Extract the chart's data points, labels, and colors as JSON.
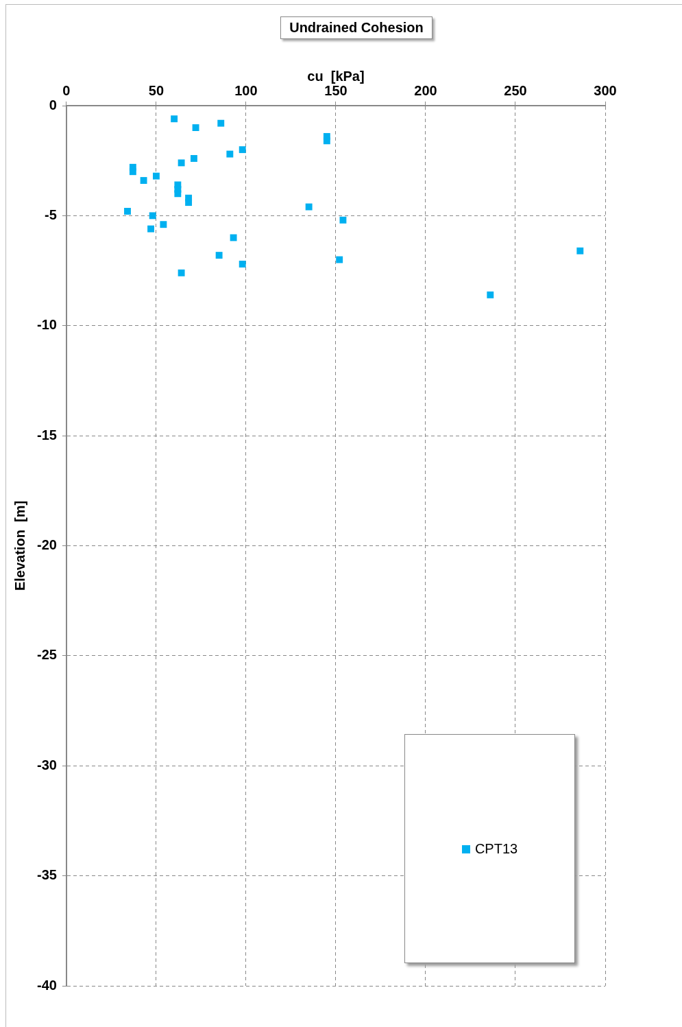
{
  "chart_data": {
    "type": "scatter",
    "title": "Undrained Cohesion",
    "xlabel": "cu  [kPa]",
    "ylabel": "Elevation  [m]",
    "xlim": [
      0,
      300
    ],
    "xticks": [
      0,
      50,
      100,
      150,
      200,
      250,
      300
    ],
    "ylim": [
      -40,
      0
    ],
    "yticks": [
      0,
      -5,
      -10,
      -15,
      -20,
      -25,
      -30,
      -35,
      -40
    ],
    "grid": true,
    "legend": "bottom right",
    "marker": "square",
    "series": [
      {
        "name": "CPT13",
        "color": "#00b0f0",
        "x": [
          60,
          72,
          86,
          145,
          145,
          98,
          91,
          71,
          64,
          37,
          37,
          50,
          43,
          62,
          62,
          62,
          68,
          68,
          135,
          34,
          48,
          154,
          54,
          47,
          93,
          286,
          85,
          152,
          98,
          64,
          236
        ],
        "values": [
          -0.6,
          -1.0,
          -0.8,
          -1.4,
          -1.6,
          -2.0,
          -2.2,
          -2.4,
          -2.6,
          -2.8,
          -3.0,
          -3.2,
          -3.4,
          -3.6,
          -3.8,
          -4.0,
          -4.2,
          -4.4,
          -4.6,
          -4.8,
          -5.0,
          -5.2,
          -5.4,
          -5.6,
          -6.0,
          -6.6,
          -6.8,
          -7.0,
          -7.2,
          -7.6,
          -8.6
        ]
      }
    ]
  }
}
